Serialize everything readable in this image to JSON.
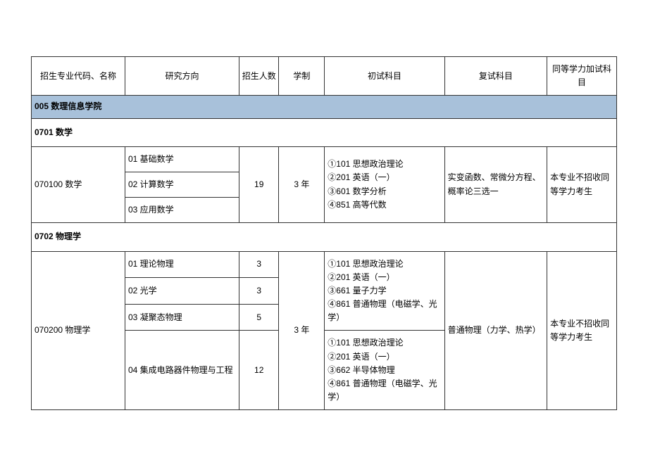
{
  "headers": {
    "col0": "招生专业代码、名称",
    "col1": "研究方向",
    "col2": "招生人数",
    "col3": "学制",
    "col4": "初试科目",
    "col5": "复试科目",
    "col6": "同等学力加试科目"
  },
  "section1": {
    "title": "005 数理信息学院"
  },
  "subject1": {
    "title": "0701 数学",
    "program": "070100 数学",
    "directions": {
      "d1": "01 基础数学",
      "d2": "02 计算数学",
      "d3": "03 应用数学"
    },
    "enrollment": "19",
    "duration": "3 年",
    "initial_exam": "①101 思想政治理论\n②201 英语（一）\n③601 数学分析\n④851 高等代数",
    "retest": "实变函数、常微分方程、概率论三选一",
    "additional": "本专业不招收同等学力考生"
  },
  "subject2": {
    "title": "0702 物理学",
    "program": "070200 物理学",
    "directions": {
      "d1": "01 理论物理",
      "d2": "02 光学",
      "d3": "03 凝聚态物理",
      "d4": "04 集成电路器件物理与工程"
    },
    "enrollments": {
      "e1": "3",
      "e2": "3",
      "e3": "5",
      "e4": "12"
    },
    "duration": "3 年",
    "initial_exam1": "①101 思想政治理论\n②201 英语（一）\n③661 量子力学\n④861 普通物理（电磁学、光学）",
    "initial_exam2": "①101 思想政治理论\n②201 英语（一）\n③662 半导体物理\n④861 普通物理（电磁学、光学）",
    "retest": "普通物理（力学、热学）",
    "additional": "本专业不招收同等学力考生"
  },
  "colors": {
    "section_bg": "#a8c1da",
    "border": "#333333",
    "background": "#ffffff"
  }
}
